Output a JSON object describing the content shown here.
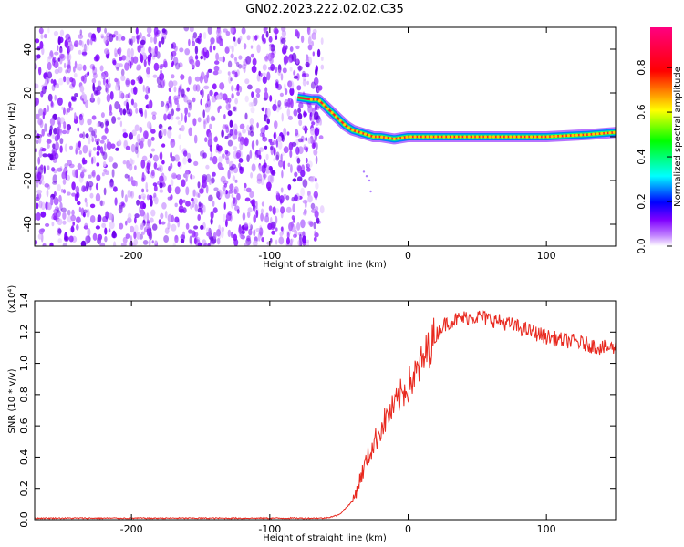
{
  "title": "GN02.2023.222.02.02.C35",
  "chart_data": [
    {
      "type": "heatmap",
      "xlabel": "Height of straight line (km)",
      "ylabel": "Frequency (Hz)",
      "xlim": [
        -270,
        150
      ],
      "ylim": [
        -50,
        50
      ],
      "x_ticks": [
        -200,
        -100,
        0,
        100
      ],
      "y_ticks": [
        -40,
        -20,
        0,
        20,
        40
      ],
      "colorbar": {
        "label": "Normalized spectral amplitude",
        "range": [
          0,
          1
        ],
        "ticks": [
          "0.0",
          "0.2",
          "0.4",
          "0.6",
          "0.8"
        ],
        "colors": [
          "#ffffff",
          "#8000ff",
          "#0000ff",
          "#00ffff",
          "#00ff00",
          "#ffff00",
          "#ff0000",
          "#ff0080"
        ]
      },
      "noise_region_x": [
        -270,
        -68
      ],
      "ridge": {
        "x": [
          -80,
          -70,
          -65,
          -60,
          -55,
          -50,
          -45,
          -40,
          -35,
          -30,
          -25,
          -20,
          -10,
          0,
          20,
          50,
          100,
          130,
          150
        ],
        "y": [
          18,
          17,
          17,
          14,
          11,
          8,
          5,
          3,
          2,
          1,
          0,
          0,
          -1,
          0,
          0,
          0,
          0,
          1,
          2
        ]
      }
    },
    {
      "type": "line",
      "xlabel": "Height of straight line (km)",
      "ylabel": "SNR (10 * v/v)",
      "y_multiplier": "(x10⁴)",
      "xlim": [
        -270,
        150
      ],
      "ylim": [
        0,
        1.4
      ],
      "x_ticks": [
        -200,
        -100,
        0,
        100
      ],
      "y_ticks": [
        "0.0",
        "0.2",
        "0.4",
        "0.6",
        "0.8",
        "1.0",
        "1.2",
        "1.4"
      ],
      "line_color": "#e8281e",
      "series": [
        {
          "x": [
            -270,
            -200,
            -100,
            -60,
            -50,
            -40,
            -35,
            -30,
            -25,
            -20,
            -15,
            -10,
            -5,
            0,
            5,
            10,
            15,
            20,
            25,
            30,
            40,
            50,
            60,
            70,
            80,
            90,
            100,
            110,
            120,
            130,
            140,
            150
          ],
          "values": [
            0.01,
            0.01,
            0.01,
            0.01,
            0.03,
            0.12,
            0.25,
            0.38,
            0.48,
            0.58,
            0.66,
            0.72,
            0.8,
            0.86,
            0.92,
            1.0,
            1.1,
            1.18,
            1.24,
            1.27,
            1.29,
            1.3,
            1.28,
            1.26,
            1.23,
            1.2,
            1.17,
            1.15,
            1.14,
            1.12,
            1.1,
            1.1
          ]
        }
      ]
    }
  ]
}
